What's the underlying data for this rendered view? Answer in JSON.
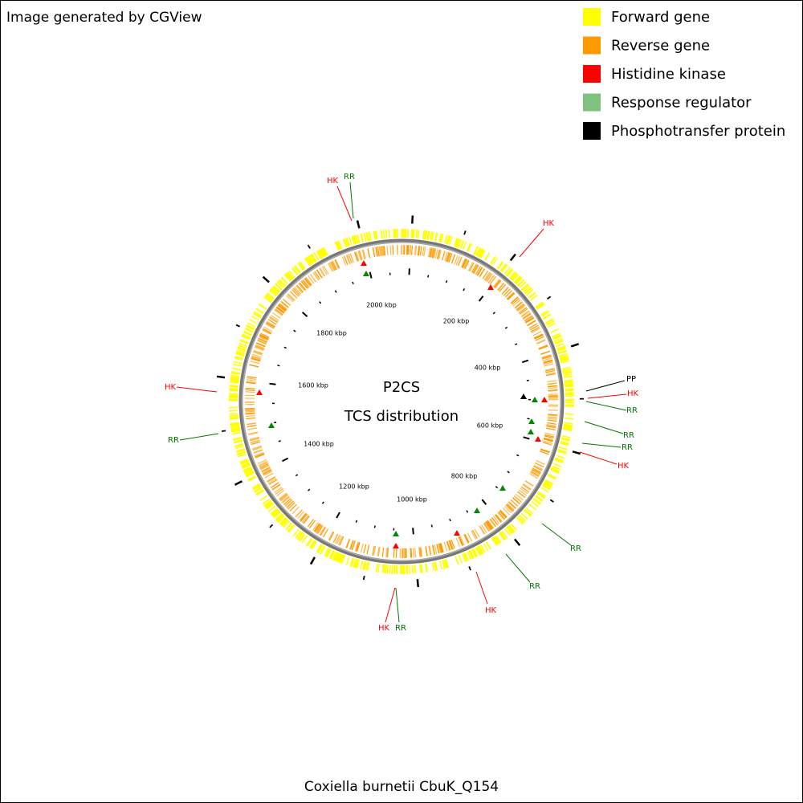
{
  "header": {
    "credit": "Image generated by CGView"
  },
  "legend": [
    {
      "label": "Forward gene",
      "color": "#ffff00"
    },
    {
      "label": "Reverse gene",
      "color": "#ff9900"
    },
    {
      "label": "Histidine kinase",
      "color": "#ff0000"
    },
    {
      "label": "Response regulator",
      "color": "#80c080"
    },
    {
      "label": "Phosphotransfer protein",
      "color": "#000000"
    }
  ],
  "map": {
    "title": "P2CS",
    "subtitle": "TCS distribution",
    "tick_labels": [
      "200 kbp",
      "400 kbp",
      "600 kbp",
      "800 kbp",
      "1000 kbp",
      "1200 kbp",
      "1400 kbp",
      "1600 kbp",
      "1800 kbp",
      "2000 kbp"
    ],
    "features": [
      {
        "label": "HK",
        "color": "#ff0000"
      },
      {
        "label": "RR",
        "color": "#007700"
      },
      {
        "label": "HK",
        "color": "#ff0000"
      },
      {
        "label": "PP",
        "color": "#000000"
      },
      {
        "label": "HK",
        "color": "#ff0000"
      },
      {
        "label": "RR",
        "color": "#007700"
      },
      {
        "label": "RR",
        "color": "#007700"
      },
      {
        "label": "RR",
        "color": "#007700"
      },
      {
        "label": "HK",
        "color": "#ff0000"
      },
      {
        "label": "RR",
        "color": "#007700"
      },
      {
        "label": "RR",
        "color": "#007700"
      },
      {
        "label": "HK",
        "color": "#ff0000"
      },
      {
        "label": "HK",
        "color": "#ff0000"
      },
      {
        "label": "RR",
        "color": "#007700"
      },
      {
        "label": "RR",
        "color": "#007700"
      },
      {
        "label": "HK",
        "color": "#ff0000"
      }
    ]
  },
  "footer": {
    "caption": "Coxiella burnetii CbuK_Q154"
  }
}
